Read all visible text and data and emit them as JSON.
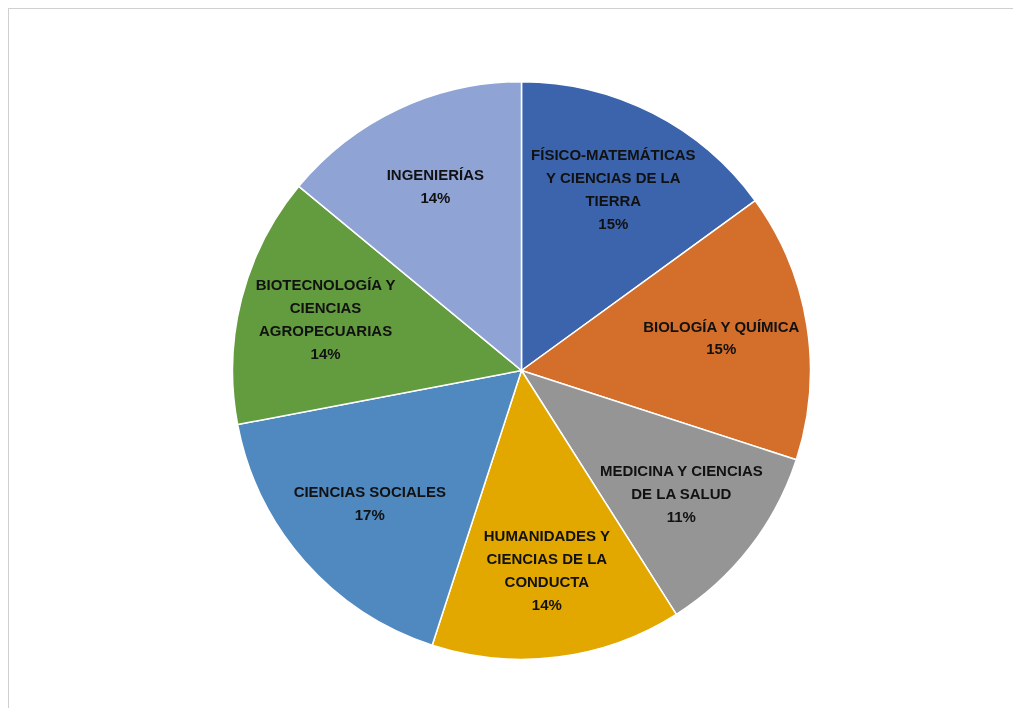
{
  "chart_data": {
    "type": "pie",
    "categories": [
      "FÍSICO-MATEMÁTICAS Y CIENCIAS DE LA TIERRA",
      "BIOLOGÍA Y QUÍMICA",
      "MEDICINA Y CIENCIAS DE LA SALUD",
      "HUMANIDADES Y CIENCIAS DE LA CONDUCTA",
      "CIENCIAS SOCIALES",
      "BIOTECNOLOGÍA Y CIENCIAS AGROPECUARIAS",
      "INGENIERÍAS"
    ],
    "values": [
      15,
      15,
      11,
      14,
      17,
      14,
      14
    ],
    "value_labels": [
      "15%",
      "15%",
      "11%",
      "14%",
      "17%",
      "14%",
      "14%"
    ],
    "colors": [
      "#3b64ad",
      "#d46e2b",
      "#959595",
      "#e2a800",
      "#4f89bf",
      "#639b3f",
      "#8fa3d5"
    ],
    "legend": false
  }
}
